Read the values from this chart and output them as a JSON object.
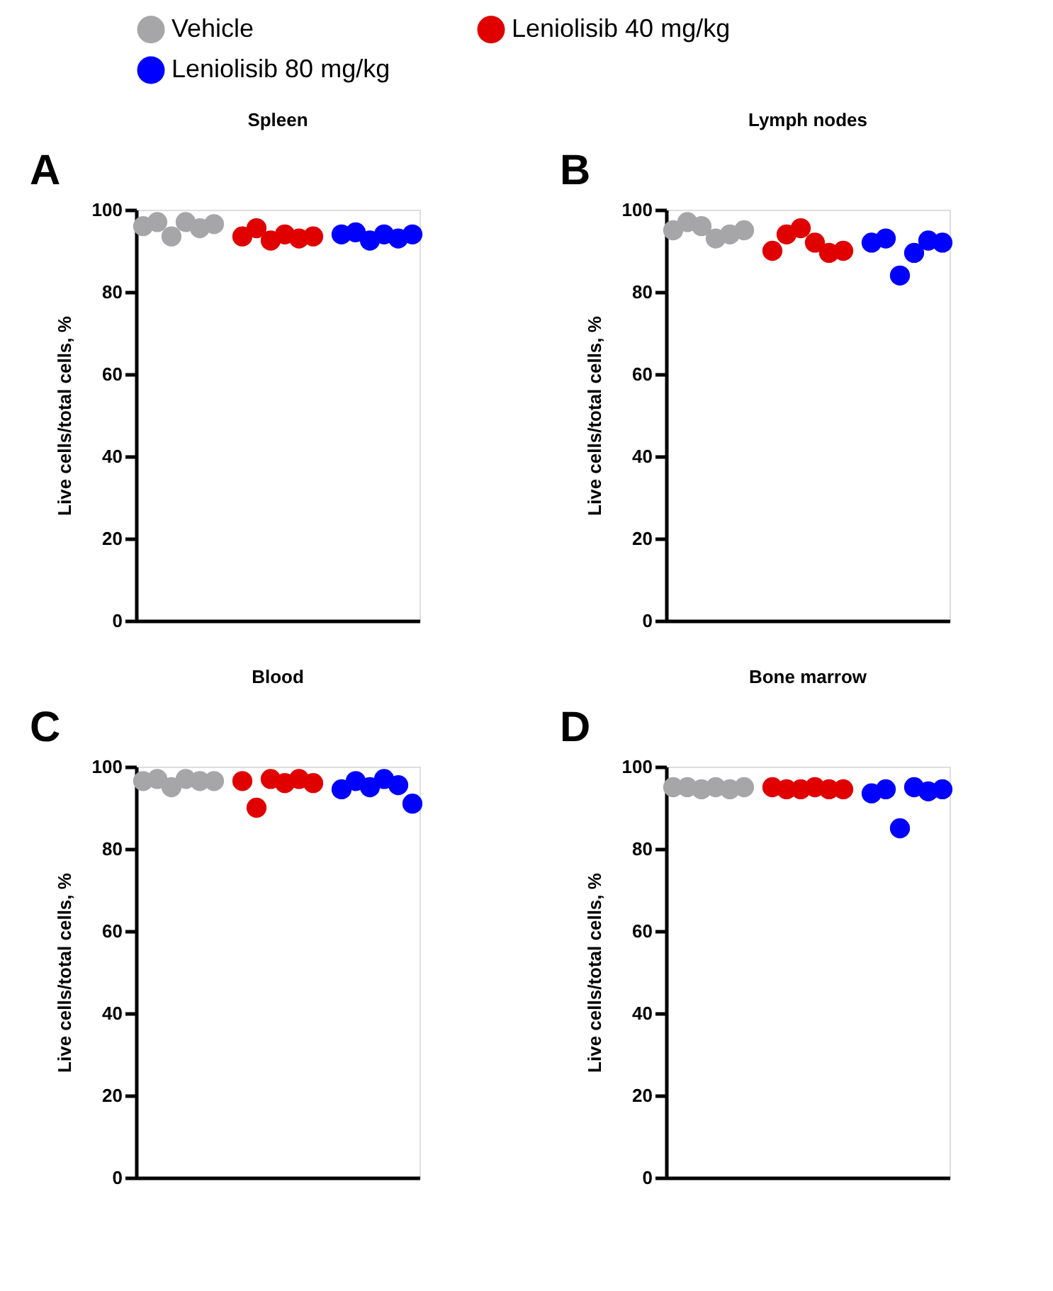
{
  "chart_data": [
    {
      "type": "scatter",
      "title": "Spleen",
      "ylabel": "Live cells/total cells, %",
      "annotations": [
        "A"
      ],
      "legend": "top",
      "marker": "circle",
      "grid": false,
      "tick_labels": "y",
      "ylim": [
        0,
        100
      ],
      "yticks": [
        0,
        20,
        40,
        60,
        80,
        100
      ],
      "categories": [
        null,
        null,
        null,
        null,
        null,
        null,
        null,
        null,
        null,
        null,
        null,
        null,
        null,
        null,
        null,
        null,
        null,
        null,
        null,
        null
      ],
      "series": [
        {
          "name": "Vehicle",
          "color": "#a6a6a8",
          "values": [
            96,
            97,
            93.5,
            97,
            95.5,
            96.5,
            null,
            null,
            null,
            null,
            null,
            null,
            null,
            null,
            null,
            null,
            null,
            null,
            null,
            null
          ]
        },
        {
          "name": "Leniolisib 40 mg/kg",
          "color": "#e00000",
          "values": [
            null,
            null,
            null,
            null,
            null,
            null,
            null,
            93.5,
            95.5,
            92.5,
            94,
            93,
            93.5,
            null,
            null,
            null,
            null,
            null,
            null,
            null
          ]
        },
        {
          "name": "Leniolisib 80 mg/kg",
          "color": "#0000ff",
          "values": [
            null,
            null,
            null,
            null,
            null,
            null,
            null,
            null,
            null,
            null,
            null,
            null,
            null,
            null,
            94,
            94.5,
            92.5,
            94,
            93,
            94
          ]
        }
      ]
    },
    {
      "type": "scatter",
      "title": "Lymph nodes",
      "ylabel": "Live cells/total cells, %",
      "annotations": [
        "B"
      ],
      "marker": "circle",
      "grid": false,
      "tick_labels": "y",
      "ylim": [
        0,
        100
      ],
      "yticks": [
        0,
        20,
        40,
        60,
        80,
        100
      ],
      "categories": [
        null,
        null,
        null,
        null,
        null,
        null,
        null,
        null,
        null,
        null,
        null,
        null,
        null,
        null,
        null,
        null,
        null,
        null,
        null,
        null
      ],
      "series": [
        {
          "name": "Vehicle",
          "color": "#a6a6a8",
          "values": [
            95,
            97,
            96,
            93,
            94,
            95,
            null,
            null,
            null,
            null,
            null,
            null,
            null,
            null,
            null,
            null,
            null,
            null,
            null,
            null
          ]
        },
        {
          "name": "Leniolisib 40 mg/kg",
          "color": "#e00000",
          "values": [
            null,
            null,
            null,
            null,
            null,
            null,
            null,
            90,
            94,
            95.5,
            92,
            89.5,
            90,
            null,
            null,
            null,
            null,
            null,
            null,
            null
          ]
        },
        {
          "name": "Leniolisib 80 mg/kg",
          "color": "#0000ff",
          "values": [
            null,
            null,
            null,
            null,
            null,
            null,
            null,
            null,
            null,
            null,
            null,
            null,
            null,
            null,
            92,
            93,
            84,
            89.5,
            92.5,
            92
          ]
        }
      ]
    },
    {
      "type": "scatter",
      "title": "Blood",
      "ylabel": "Live cells/total cells, %",
      "annotations": [
        "C"
      ],
      "marker": "circle",
      "grid": false,
      "tick_labels": "y",
      "ylim": [
        0,
        100
      ],
      "yticks": [
        0,
        20,
        40,
        60,
        80,
        100
      ],
      "categories": [
        null,
        null,
        null,
        null,
        null,
        null,
        null,
        null,
        null,
        null,
        null,
        null,
        null,
        null,
        null,
        null,
        null,
        null,
        null,
        null
      ],
      "series": [
        {
          "name": "Vehicle",
          "color": "#a6a6a8",
          "values": [
            96.5,
            97,
            95,
            97,
            96.5,
            96.5,
            null,
            null,
            null,
            null,
            null,
            null,
            null,
            null,
            null,
            null,
            null,
            null,
            null,
            null
          ]
        },
        {
          "name": "Leniolisib 40 mg/kg",
          "color": "#e00000",
          "values": [
            null,
            null,
            null,
            null,
            null,
            null,
            null,
            96.5,
            90,
            97,
            96,
            97,
            96,
            null,
            null,
            null,
            null,
            null,
            null,
            null
          ]
        },
        {
          "name": "Leniolisib 80 mg/kg",
          "color": "#0000ff",
          "values": [
            null,
            null,
            null,
            null,
            null,
            null,
            null,
            null,
            null,
            null,
            null,
            null,
            null,
            null,
            94.5,
            96.5,
            95,
            97,
            95.5,
            91
          ]
        }
      ]
    },
    {
      "type": "scatter",
      "title": "Bone marrow",
      "ylabel": "Live cells/total cells, %",
      "annotations": [
        "D"
      ],
      "marker": "circle",
      "grid": false,
      "tick_labels": "y",
      "ylim": [
        0,
        100
      ],
      "yticks": [
        0,
        20,
        40,
        60,
        80,
        100
      ],
      "categories": [
        null,
        null,
        null,
        null,
        null,
        null,
        null,
        null,
        null,
        null,
        null,
        null,
        null,
        null,
        null,
        null,
        null,
        null,
        null,
        null
      ],
      "series": [
        {
          "name": "Vehicle",
          "color": "#a6a6a8",
          "values": [
            95,
            95,
            94.5,
            95,
            94.5,
            95,
            null,
            null,
            null,
            null,
            null,
            null,
            null,
            null,
            null,
            null,
            null,
            null,
            null,
            null
          ]
        },
        {
          "name": "Leniolisib 40 mg/kg",
          "color": "#e00000",
          "values": [
            null,
            null,
            null,
            null,
            null,
            null,
            null,
            95,
            94.5,
            94.5,
            95,
            94.5,
            94.5,
            null,
            null,
            null,
            null,
            null,
            null,
            null
          ]
        },
        {
          "name": "Leniolisib 80 mg/kg",
          "color": "#0000ff",
          "values": [
            null,
            null,
            null,
            null,
            null,
            null,
            null,
            null,
            null,
            null,
            null,
            null,
            null,
            null,
            93.5,
            94.5,
            85,
            95,
            94,
            94.5
          ]
        }
      ]
    }
  ]
}
